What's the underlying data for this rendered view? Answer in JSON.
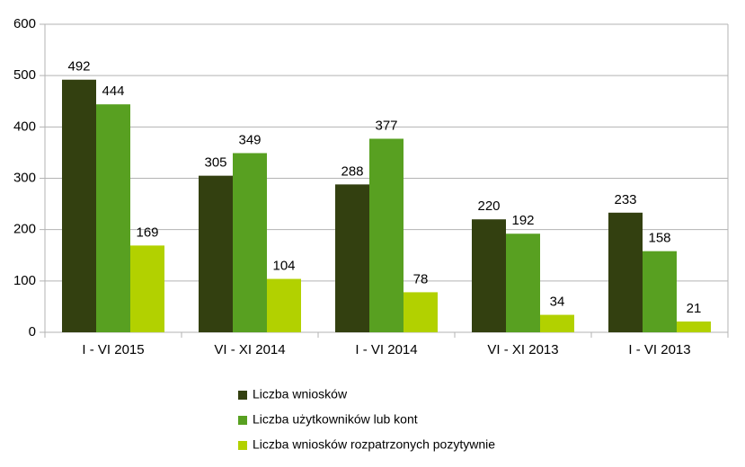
{
  "chart_data": {
    "type": "bar",
    "categories": [
      "I - VI 2015",
      "VI - XI 2014",
      "I - VI 2014",
      "VI - XI 2013",
      "I - VI 2013"
    ],
    "series": [
      {
        "name": "Liczba wniosków",
        "color": "#334010",
        "values": [
          492,
          305,
          288,
          220,
          233
        ]
      },
      {
        "name": "Liczba użytkowników lub kont",
        "color": "#58a021",
        "values": [
          444,
          349,
          377,
          192,
          158
        ]
      },
      {
        "name": "Liczba wniosków rozpatrzonych pozytywnie",
        "color": "#b2d100",
        "values": [
          169,
          104,
          78,
          34,
          21
        ]
      }
    ],
    "ylim": [
      0,
      600
    ],
    "yticks": [
      0,
      100,
      200,
      300,
      400,
      500,
      600
    ],
    "grid": true,
    "legend": "bottom"
  }
}
